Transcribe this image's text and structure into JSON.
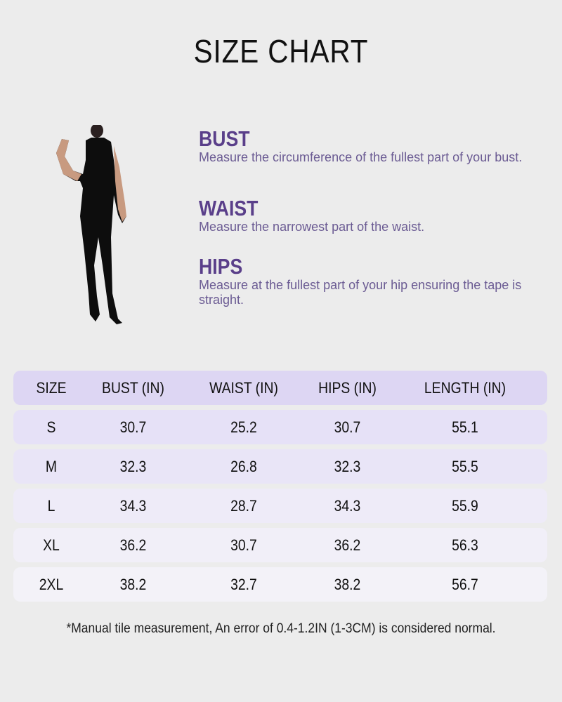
{
  "title": "SIZE CHART",
  "guide": [
    {
      "heading": "BUST",
      "text": "Measure the circumference of the fullest part of your bust."
    },
    {
      "heading": "WAIST",
      "text": "Measure the narrowest part of the waist."
    },
    {
      "heading": "HIPS",
      "text": "Measure at the fullest part of your hip ensuring the tape is straight."
    }
  ],
  "table": {
    "headers": [
      "SIZE",
      "BUST (IN)",
      "WAIST (IN)",
      "HIPS (IN)",
      "LENGTH (IN)"
    ],
    "rows": [
      [
        "S",
        "30.7",
        "25.2",
        "30.7",
        "55.1"
      ],
      [
        "M",
        "32.3",
        "26.8",
        "32.3",
        "55.5"
      ],
      [
        "L",
        "34.3",
        "28.7",
        "34.3",
        "55.9"
      ],
      [
        "XL",
        "36.2",
        "30.7",
        "36.2",
        "56.3"
      ],
      [
        "2XL",
        "38.2",
        "32.7",
        "38.2",
        "56.7"
      ]
    ]
  },
  "colors": {
    "accent": "#5a3f8a",
    "header_row": "#ddd6f3",
    "background": "#ececec"
  },
  "note": "*Manual tile measurement, An error of 0.4-1.2IN (1-3CM) is considered normal."
}
